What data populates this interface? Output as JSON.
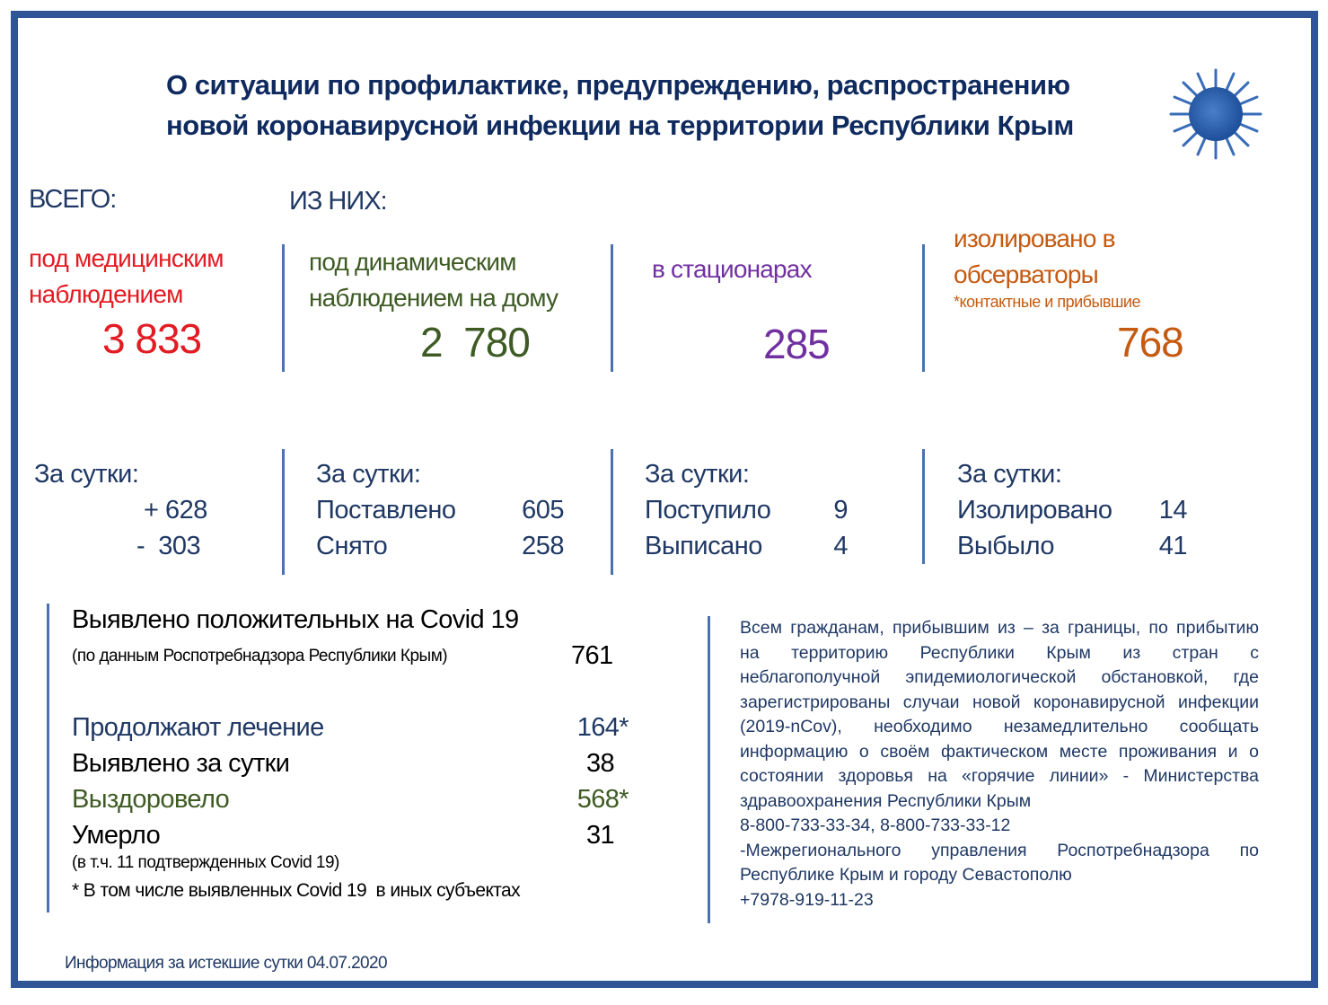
{
  "title": {
    "line1": "О ситуации по профилактике, предупреждению, распространению",
    "line2": "новой коронавирусной инфекции на территории Республики Крым"
  },
  "icon": "coronavirus-icon",
  "colors": {
    "frame": "#2f5597",
    "title": "#0f2a5e",
    "medical": "#e31b23",
    "home": "#3e5b24",
    "hospital": "#7030a0",
    "observatory": "#c55a11"
  },
  "total_label": "ВСЕГО:",
  "of_them_label": "ИЗ НИХ:",
  "categories": [
    {
      "label1": "под медицинским",
      "label2": "наблюдением",
      "value": "3 833",
      "day_title": "За сутки:",
      "rows": [
        {
          "name": "",
          "value": "+ 628"
        },
        {
          "name": "",
          "value": "-  303"
        }
      ]
    },
    {
      "label1": "под динамическим",
      "label2": "наблюдением на дому",
      "value": "2  780",
      "day_title": "За сутки:",
      "rows": [
        {
          "name": "Поставлено",
          "value": "605"
        },
        {
          "name": "Снято",
          "value": "258"
        }
      ]
    },
    {
      "label1": "в стационарах",
      "value": "285",
      "day_title": "За сутки:",
      "rows": [
        {
          "name": "Поступило",
          "value": "9"
        },
        {
          "name": "Выписано",
          "value": "4"
        }
      ]
    },
    {
      "label1": "изолировано в",
      "label2": "обсерваторы",
      "sub": "*контактные и прибывшие",
      "value": "768",
      "day_title": "За сутки:",
      "rows": [
        {
          "name": "Изолировано",
          "value": "14"
        },
        {
          "name": "Выбыло",
          "value": "41"
        }
      ]
    }
  ],
  "covid": {
    "title": "Выявлено положительных на Covid 19",
    "source": "(по данным Роспотребнадзора Республики Крым)",
    "total": "761",
    "rows": [
      {
        "name": "Продолжают лечение",
        "value": "164*"
      },
      {
        "name": "Выявлено за сутки",
        "value": "38"
      },
      {
        "name": "Выздоровело",
        "value": "568*"
      },
      {
        "name": "Умерло",
        "value": "31"
      }
    ],
    "died_note": "(в т.ч. 11 подтвержденных Covid 19)",
    "footnote": "* В том числе выявленных Covid 19  в иных субъектах"
  },
  "notice": [
    "Всем гражданам, прибывшим из – за границы, по прибытию",
    "на территорию Республики Крым из стран с",
    "неблагополучной эпидемиологической обстановкой, где",
    "зарегистрированы случаи новой коронавирусной инфекции",
    "(2019-nCov), необходимо незамедлительно сообщать",
    "информацию о своём фактическом месте проживания и о",
    "состоянии здоровья на «горячие линии» - Министерства",
    "здравоохранения Республики Крым",
    "8-800-733-33-34, 8-800-733-33-12",
    "-Межрегионального управления Роспотребнадзора по",
    "Республике Крым и городу Севастополю",
    "+7978-919-11-23"
  ],
  "footer": "Информация за истекшие сутки 04.07.2020"
}
